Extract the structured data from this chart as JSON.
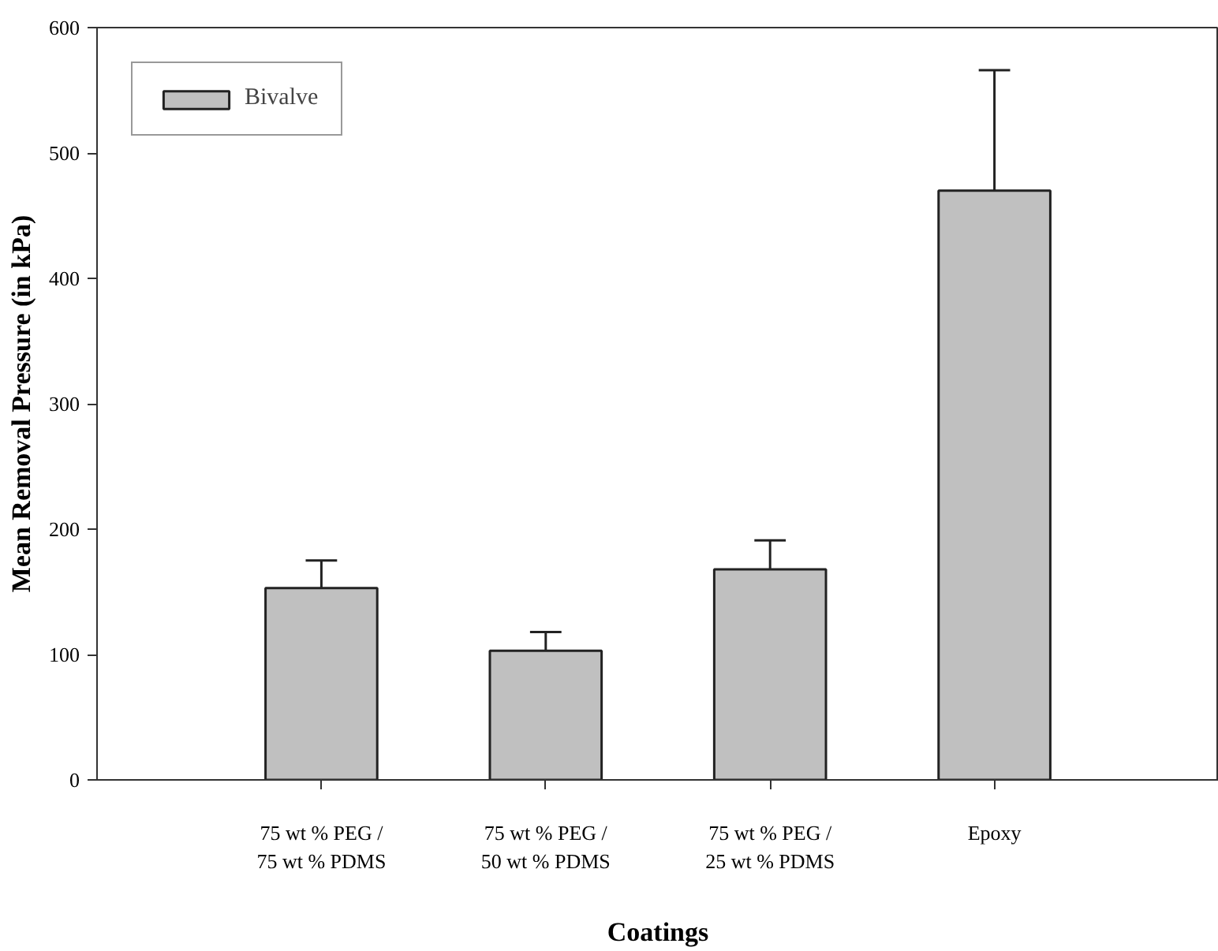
{
  "chart_data": {
    "type": "bar",
    "xlabel": "Coatings",
    "ylabel": "Mean Removal Pressure (in kPa)",
    "categories": [
      "75 wt % PEG /\n75 wt % PDMS",
      "75 wt % PEG /\n50 wt % PDMS",
      "75 wt % PEG /\n25 wt % PDMS",
      "Epoxy"
    ],
    "series": [
      {
        "name": "Bivalve",
        "color": "#c0c0c0",
        "values": [
          153,
          103,
          168,
          470
        ],
        "errors": [
          [
            153,
            175
          ],
          [
            103,
            118
          ],
          [
            168,
            191
          ],
          [
            470,
            566
          ]
        ]
      }
    ],
    "ylim": [
      0,
      600
    ],
    "yticks": [
      0,
      100,
      200,
      300,
      400,
      500,
      600
    ],
    "grid": false,
    "legend": "top left"
  }
}
